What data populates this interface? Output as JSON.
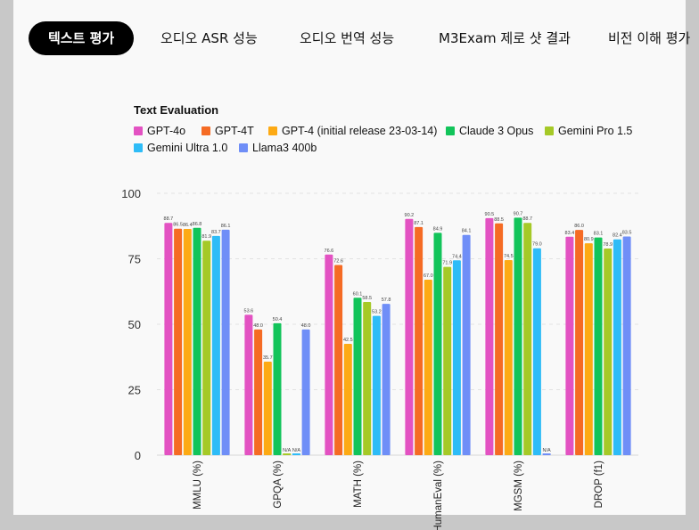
{
  "tabs": [
    {
      "label": "텍스트 평가",
      "active": true
    },
    {
      "label": "오디오 ASR 성능",
      "active": false
    },
    {
      "label": "오디오 번역 성능",
      "active": false
    },
    {
      "label": "M3Exam 제로 샷 결과",
      "active": false
    },
    {
      "label": "비전 이해 평가",
      "active": false
    }
  ],
  "chart_data": {
    "type": "bar",
    "title": "Text Evaluation",
    "xlabel": "",
    "ylabel": "",
    "ylim": [
      0,
      100
    ],
    "yticks": [
      0,
      25,
      50,
      75,
      100
    ],
    "grid": true,
    "legend_position": "top-left",
    "categories": [
      "MMLU (%)",
      "GPQA (%)",
      "MATH (%)",
      "HumanEval (%)",
      "MGSM (%)",
      "DROP (f1)"
    ],
    "series": [
      {
        "name": "GPT-4o",
        "color": "#e352c2",
        "values": [
          88.7,
          53.6,
          76.6,
          90.2,
          90.5,
          83.4
        ],
        "labels": [
          "88.7",
          "53.6",
          "76.6",
          "90.2",
          "90.5",
          "83.4"
        ]
      },
      {
        "name": "GPT-4T",
        "color": "#f56b24",
        "values": [
          86.5,
          48.0,
          72.6,
          87.1,
          88.5,
          86.0
        ],
        "labels": [
          "86.5",
          "48.0",
          "72.6",
          "87.1",
          "88.5",
          "86.0"
        ]
      },
      {
        "name": "GPT-4 (initial release 23-03-14)",
        "color": "#fdaa14",
        "values": [
          86.4,
          35.7,
          42.5,
          67.0,
          74.5,
          80.9
        ],
        "labels": [
          "86.4",
          "35.7",
          "42.5",
          "67.0",
          "74.5",
          "80.9"
        ]
      },
      {
        "name": "Claude 3 Opus",
        "color": "#12c45a",
        "values": [
          86.8,
          50.4,
          60.1,
          84.9,
          90.7,
          83.1
        ],
        "labels": [
          "86.8",
          "50.4",
          "60.1",
          "84.9",
          "90.7",
          "83.1"
        ]
      },
      {
        "name": "Gemini Pro 1.5",
        "color": "#a5c927",
        "values": [
          81.9,
          null,
          58.5,
          71.9,
          88.7,
          78.9
        ],
        "labels": [
          "81.9",
          "N/A",
          "58.5",
          "71.9",
          "88.7",
          "78.9"
        ]
      },
      {
        "name": "Gemini Ultra 1.0",
        "color": "#2ebcf7",
        "values": [
          83.7,
          null,
          53.2,
          74.4,
          79.0,
          82.4
        ],
        "labels": [
          "83.7",
          "N/A",
          "53.2",
          "74.4",
          "79.0",
          "82.4"
        ]
      },
      {
        "name": "Llama3 400b",
        "color": "#6f8ef7",
        "values": [
          86.1,
          48.0,
          57.8,
          84.1,
          null,
          83.5
        ],
        "labels": [
          "86.1",
          "48.0",
          "57.8",
          "84.1",
          "N/A",
          "83.5"
        ]
      }
    ]
  }
}
